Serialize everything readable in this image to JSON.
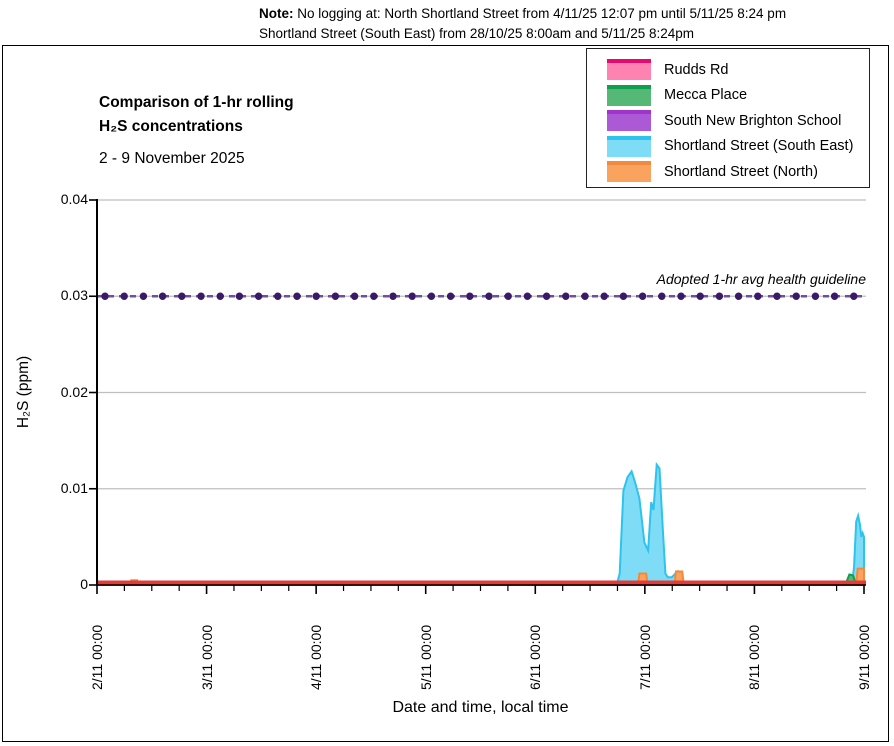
{
  "note": {
    "label": "Note:",
    "line1": "No logging at: North Shortland Street from 4/11/25 12:07 pm until 5/11/25 8:24 pm",
    "line2": "Shortland Street (South East) from 28/10/25 8:00am and 5/11/25 8:24pm"
  },
  "title": {
    "line1": "Comparison of 1-hr rolling",
    "line2": "H₂S concentrations",
    "subtitle": "2 - 9 November 2025"
  },
  "chart_data": {
    "type": "area",
    "title": "Comparison of 1-hr rolling H₂S concentrations",
    "subtitle": "2 - 9 November 2025",
    "xlabel": "Date and time, local time",
    "ylabel": "H₂S (ppm)",
    "x_unit": "hours since 2/11/2025 00:00",
    "xlim": [
      0,
      168
    ],
    "ylim": [
      0,
      0.04
    ],
    "grid": "horizontal",
    "grid_color": "#BFBFBF",
    "legend_position": "top-right",
    "x_ticks": {
      "labels": [
        "2/11 00:00",
        "3/11 00:00",
        "4/11 00:00",
        "5/11 00:00",
        "6/11 00:00",
        "7/11 00:00",
        "8/11 00:00",
        "9/11 00:00"
      ],
      "hours": [
        0,
        24,
        48,
        72,
        96,
        120,
        144,
        168
      ],
      "minor_interval_hours": 6
    },
    "y_ticks": {
      "labels": [
        "0",
        "0.01",
        "0.02",
        "0.03",
        "0.04"
      ],
      "values": [
        0,
        0.01,
        0.02,
        0.03,
        0.04
      ]
    },
    "guideline": {
      "label": "Adopted 1-hr avg health guideline",
      "value": 0.03,
      "marker_color": "#3A1A66",
      "dash_color": "#6E4FA0"
    },
    "series": [
      {
        "name": "South New Brighton School",
        "legend_index": 2,
        "fill": "#AC59D6",
        "line": "#A232CC",
        "points": [
          [
            0,
            0
          ],
          [
            168,
            0
          ]
        ]
      },
      {
        "name": "Shortland Street (South East)",
        "legend_index": 3,
        "fill": "#7EDCF6",
        "line": "#2EC3EC",
        "points": [
          [
            0,
            0
          ],
          [
            113.8,
            0
          ],
          [
            114.5,
            0.0012
          ],
          [
            115.3,
            0.0098
          ],
          [
            116.2,
            0.0112
          ],
          [
            117.1,
            0.0118
          ],
          [
            117.9,
            0.0106
          ],
          [
            118.8,
            0.009
          ],
          [
            119.9,
            0.0044
          ],
          [
            120.7,
            0.0036
          ],
          [
            121.4,
            0.0086
          ],
          [
            121.9,
            0.0078
          ],
          [
            122.6,
            0.0125
          ],
          [
            123.2,
            0.0121
          ],
          [
            123.9,
            0.006
          ],
          [
            124.5,
            0.0012
          ],
          [
            125.0,
            0.0008
          ],
          [
            125.9,
            0.0008
          ],
          [
            126.5,
            0.0011
          ],
          [
            127.2,
            0.0014
          ],
          [
            127.8,
            0.0005
          ],
          [
            128.2,
            0
          ],
          [
            165.3,
            0
          ],
          [
            165.8,
            0.0018
          ],
          [
            166.3,
            0.0066
          ],
          [
            166.7,
            0.0072
          ],
          [
            167.1,
            0.0063
          ],
          [
            167.4,
            0.005
          ],
          [
            167.7,
            0.0054
          ],
          [
            168,
            0.005
          ]
        ]
      },
      {
        "name": "Mecca Place",
        "legend_index": 1,
        "fill": "#55B877",
        "line": "#0FA04F",
        "points": [
          [
            0,
            0
          ],
          [
            163.9,
            0
          ],
          [
            164.3,
            0.0005
          ],
          [
            164.8,
            0.0011
          ],
          [
            165.6,
            0.001
          ],
          [
            166.1,
            0.0003
          ],
          [
            166.4,
            0
          ],
          [
            168,
            0
          ]
        ]
      },
      {
        "name": "Shortland Street (North)",
        "legend_index": 4,
        "fill": "#F9A35F",
        "line": "#F28A3D",
        "points": [
          [
            0,
            0
          ],
          [
            7.0,
            0
          ],
          [
            7.5,
            0.0005
          ],
          [
            8.8,
            0.0005
          ],
          [
            9.3,
            0
          ],
          [
            118.5,
            0
          ],
          [
            118.8,
            0.0012
          ],
          [
            120.3,
            0.0012
          ],
          [
            120.6,
            0
          ],
          [
            126.5,
            0
          ],
          [
            126.8,
            0.0014
          ],
          [
            128.2,
            0.0014
          ],
          [
            128.5,
            0
          ],
          [
            166.3,
            0
          ],
          [
            166.6,
            0.0017
          ],
          [
            168,
            0.0017
          ]
        ]
      },
      {
        "name": "Rudds Rd",
        "legend_index": 0,
        "fill": "#FF83B0",
        "line": "#E60A6F",
        "plot_line": "#E23B38",
        "points": [
          [
            0,
            0
          ],
          [
            168,
            0
          ]
        ]
      }
    ]
  },
  "axis_titles": {
    "x": "Date and time, local time",
    "y": "H₂S (ppm)"
  }
}
